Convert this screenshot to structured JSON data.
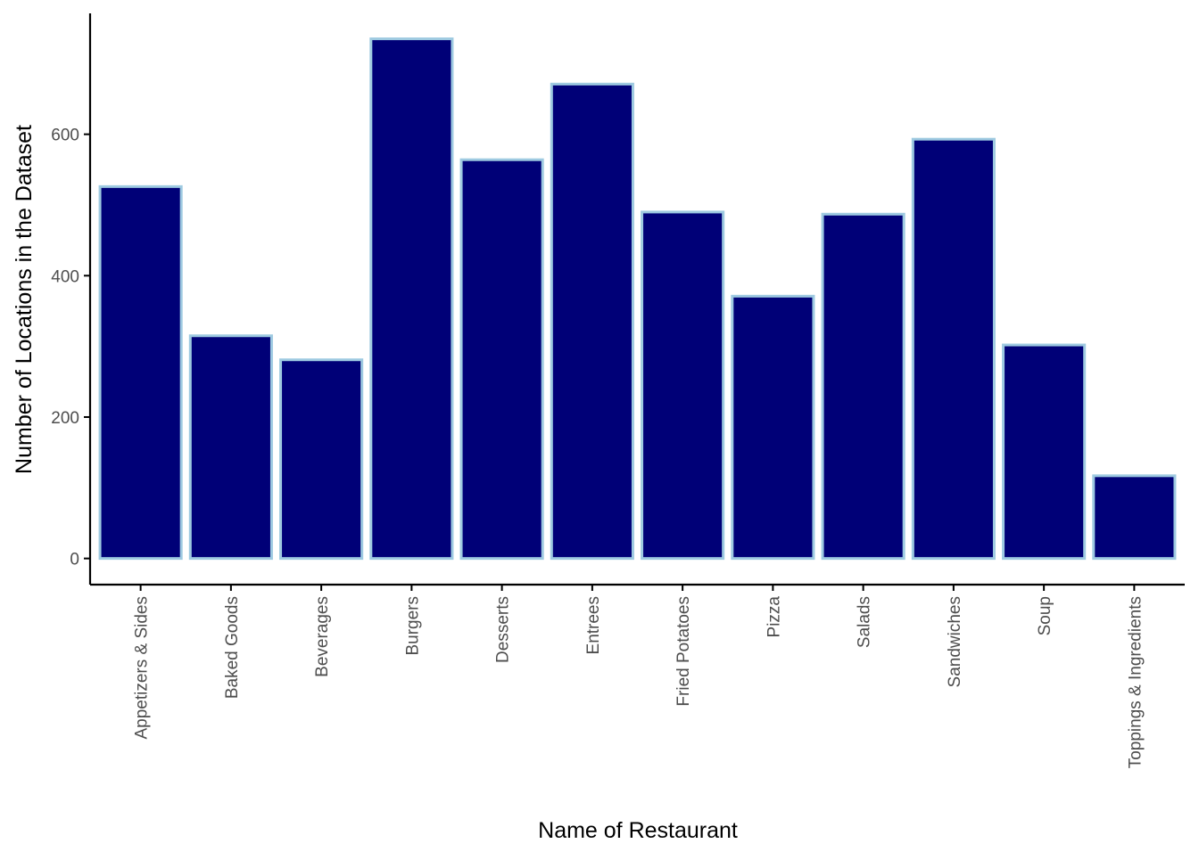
{
  "chart_data": {
    "type": "bar",
    "title": "",
    "xlabel": "Name of Restaurant",
    "ylabel": "Number of Locations in the Dataset",
    "categories": [
      "Appetizers & Sides",
      "Baked Goods",
      "Beverages",
      "Burgers",
      "Desserts",
      "Entrees",
      "Fried Potatoes",
      "Pizza",
      "Salads",
      "Sandwiches",
      "Soup",
      "Toppings & Ingredients"
    ],
    "values": [
      526,
      315,
      281,
      735,
      564,
      671,
      490,
      371,
      487,
      593,
      302,
      117
    ],
    "ylim": [
      -37,
      771
    ],
    "yticks": [
      0,
      200,
      400,
      600
    ],
    "ytick_labels": [
      "0",
      "200",
      "400",
      "600"
    ],
    "grid": false,
    "legend": "none",
    "colors": {
      "bar_fill": "#000077",
      "bar_outline": "#9ecae1",
      "axis": "#000000",
      "tick_label": "#4d4d4d"
    }
  }
}
